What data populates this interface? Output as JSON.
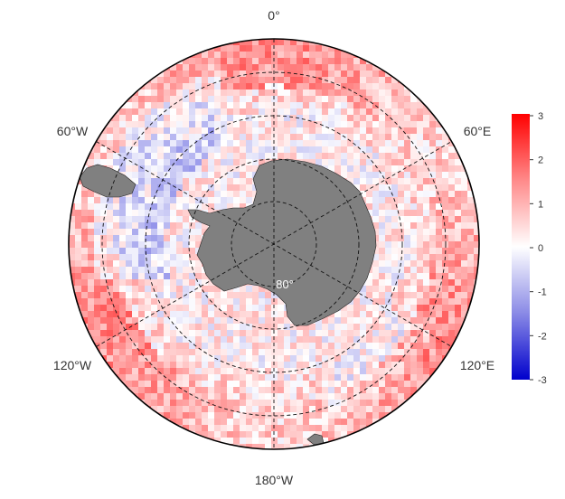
{
  "map": {
    "projection": "south polar stereographic",
    "longitude_labels": {
      "top": "0°",
      "upper_left": "60°W",
      "upper_right": "60°E",
      "lower_left": "120°W",
      "lower_right": "120°E",
      "bottom": "180°W"
    },
    "latitude_label": "80°",
    "graticule": "dashed",
    "land_color": "#808080"
  },
  "colorbar": {
    "ticks": [
      "3",
      "2",
      "1",
      "0",
      "-1",
      "-2",
      "-3"
    ],
    "min": -3,
    "max": 3,
    "colors": {
      "high": "#ff0000",
      "mid": "#ffffff",
      "low": "#0000cc"
    }
  }
}
